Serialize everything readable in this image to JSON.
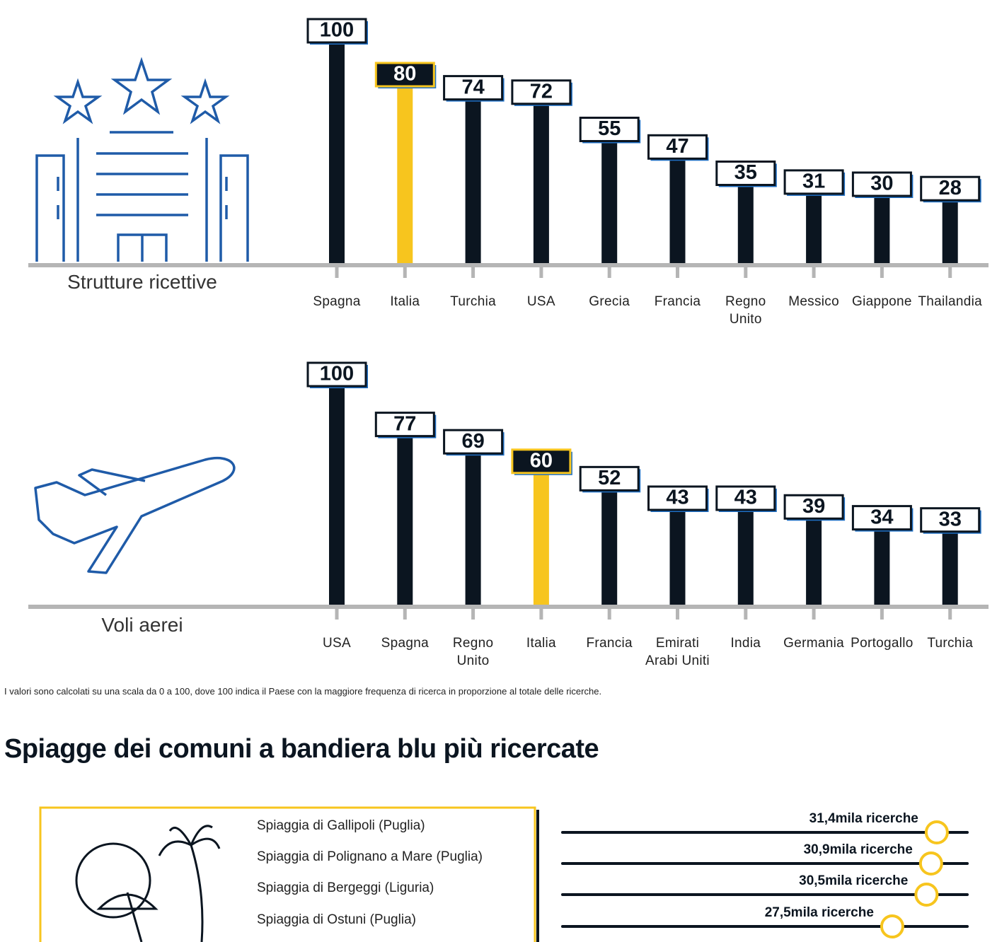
{
  "chart_data": [
    {
      "type": "bar",
      "title": "Strutture ricettive",
      "categories": [
        "Spagna",
        "Italia",
        "Turchia",
        "USA",
        "Grecia",
        "Francia",
        "Regno Unito",
        "Messico",
        "Giappone",
        "Thailandia"
      ],
      "values": [
        100,
        80,
        74,
        72,
        55,
        47,
        35,
        31,
        30,
        28
      ],
      "colors": [
        "#0b1520",
        "#f7c51e",
        "#0b1520",
        "#0b1520",
        "#0b1520",
        "#0b1520",
        "#0b1520",
        "#0b1520",
        "#0b1520",
        "#0b1520"
      ],
      "ylim": [
        0,
        100
      ]
    },
    {
      "type": "bar",
      "title": "Voli aerei",
      "categories": [
        "USA",
        "Spagna",
        "Regno Unito",
        "Italia",
        "Francia",
        "Emirati Arabi Uniti",
        "India",
        "Germania",
        "Portogallo",
        "Turchia"
      ],
      "values": [
        100,
        77,
        69,
        60,
        52,
        43,
        43,
        39,
        34,
        33
      ],
      "colors": [
        "#0b1520",
        "#0b1520",
        "#0b1520",
        "#f7c51e",
        "#0b1520",
        "#0b1520",
        "#0b1520",
        "#0b1520",
        "#0b1520",
        "#0b1520"
      ],
      "ylim": [
        0,
        100
      ]
    },
    {
      "type": "lollipop",
      "categories": [
        "Spiaggia di Gallipoli (Puglia)",
        "Spiaggia di Polignano a Mare (Puglia)",
        "Spiaggia di Bergeggi (Liguria)",
        "Spiaggia di Ostuni (Puglia)"
      ],
      "values": [
        31.4,
        30.9,
        30.5,
        27.5
      ],
      "value_labels": [
        "31,4mila ricerche",
        "30,9mila ricerche",
        "30,5mila ricerche",
        "27,5mila ricerche"
      ],
      "color": "#f7c51e",
      "xlim": [
        0,
        35
      ]
    }
  ],
  "note": "I valori sono calcolati su una scala da 0 a 100, dove 100 indica il Paese con la maggiore frequenza di ricerca in proporzione al totale delle ricerche.",
  "heading": "Spiagge dei comuni a bandiera blu più ricercate"
}
